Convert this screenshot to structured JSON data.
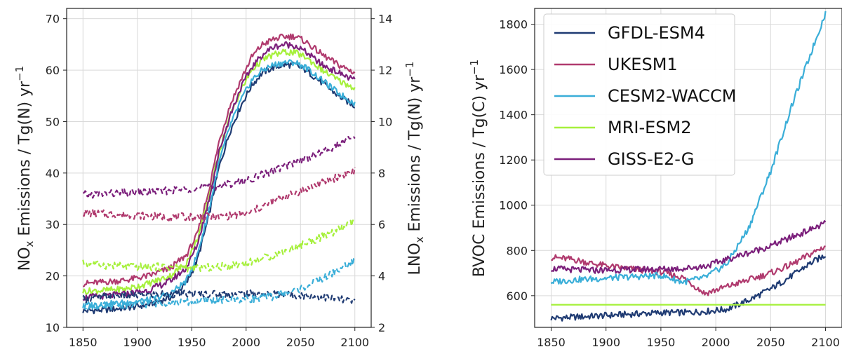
{
  "chart_data": [
    {
      "type": "line",
      "title": "",
      "xlabel": "",
      "ylabel_main": "NO",
      "ylabel_sub": "x",
      "ylabel_rest": " Emissions / Tg(N) yr",
      "ylabel_sup": "−1",
      "y2label_main": "LNO",
      "y2label_sub": "x",
      "y2label_rest": " Emissions / Tg(N) yr",
      "y2label_sup": "−1",
      "xlim": [
        1835,
        2115
      ],
      "ylim": [
        10,
        72
      ],
      "y2lim": [
        2,
        14.4
      ],
      "xticks": [
        1850,
        1900,
        1950,
        2000,
        2050,
        2100
      ],
      "yticks": [
        10,
        20,
        30,
        40,
        50,
        60,
        70
      ],
      "y2ticks": [
        2,
        4,
        6,
        8,
        10,
        12,
        14
      ],
      "grid": true,
      "series": [
        {
          "name": "GFDL-ESM4",
          "style": "solid",
          "color": "#1f3b73",
          "x": [
            1850,
            1870,
            1890,
            1910,
            1930,
            1945,
            1955,
            1965,
            1975,
            1985,
            1995,
            2005,
            2015,
            2025,
            2035,
            2045,
            2055,
            2070,
            2085,
            2100
          ],
          "y": [
            13.2,
            13.4,
            13.8,
            14.4,
            15.8,
            18.5,
            23,
            31,
            41,
            48,
            53,
            57,
            59.5,
            60.5,
            61,
            61,
            60,
            57.5,
            55,
            53
          ]
        },
        {
          "name": "UKESM1",
          "style": "solid",
          "color": "#b03a6e",
          "x": [
            1850,
            1870,
            1890,
            1910,
            1930,
            1945,
            1955,
            1965,
            1975,
            1985,
            1995,
            2005,
            2015,
            2025,
            2035,
            2045,
            2055,
            2070,
            2085,
            2100
          ],
          "y": [
            18.5,
            18.8,
            19.2,
            20,
            21.5,
            24,
            28,
            36,
            46,
            53,
            58,
            62.5,
            65,
            66,
            66.5,
            66.6,
            65.5,
            63,
            61,
            59.5
          ]
        },
        {
          "name": "CESM2-WACCM",
          "style": "solid",
          "color": "#3aaed8",
          "x": [
            1850,
            1870,
            1890,
            1910,
            1930,
            1945,
            1955,
            1965,
            1975,
            1985,
            1995,
            2005,
            2015,
            2025,
            2035,
            2045,
            2055,
            2070,
            2085,
            2100
          ],
          "y": [
            14.3,
            14.5,
            14.8,
            15.3,
            16.5,
            19,
            24,
            32,
            42,
            49,
            54,
            58,
            60,
            61,
            61.5,
            61.5,
            60.5,
            58,
            55.5,
            53.5
          ]
        },
        {
          "name": "MRI-ESM2",
          "style": "solid",
          "color": "#a6f03c",
          "x": [
            1850,
            1870,
            1890,
            1910,
            1930,
            1945,
            1955,
            1965,
            1975,
            1985,
            1995,
            2005,
            2015,
            2025,
            2035,
            2045,
            2055,
            2070,
            2085,
            2100
          ],
          "y": [
            17,
            17.2,
            17.5,
            18.5,
            20,
            22.5,
            27,
            34.5,
            44,
            51,
            56,
            60,
            62,
            63,
            63.5,
            63.4,
            62.5,
            60,
            58,
            56.5
          ]
        },
        {
          "name": "GISS-E2-G",
          "style": "solid",
          "color": "#7b1f7b",
          "x": [
            1850,
            1870,
            1890,
            1910,
            1930,
            1945,
            1955,
            1965,
            1975,
            1985,
            1995,
            2005,
            2015,
            2025,
            2035,
            2045,
            2055,
            2070,
            2085,
            2100
          ],
          "y": [
            15.8,
            16.1,
            16.5,
            17.2,
            19,
            21.5,
            26,
            34,
            44,
            51,
            56.5,
            60.5,
            63,
            64.5,
            65,
            64.8,
            63.5,
            61,
            59.5,
            58
          ]
        },
        {
          "name": "GFDL-ESM4",
          "style": "dashed",
          "axis": "right",
          "color": "#1f3b73",
          "x": [
            1850,
            1875,
            1900,
            1925,
            1950,
            1975,
            2000,
            2025,
            2050,
            2075,
            2100
          ],
          "y": [
            3.1,
            3.2,
            3.25,
            3.3,
            3.3,
            3.3,
            3.3,
            3.3,
            3.25,
            3.15,
            3.0
          ]
        },
        {
          "name": "UKESM1",
          "style": "dashed",
          "axis": "right",
          "color": "#b03a6e",
          "x": [
            1850,
            1875,
            1900,
            1925,
            1950,
            1975,
            2000,
            2025,
            2050,
            2075,
            2100
          ],
          "y": [
            6.45,
            6.4,
            6.35,
            6.3,
            6.3,
            6.3,
            6.4,
            6.9,
            7.3,
            7.7,
            8.1
          ]
        },
        {
          "name": "CESM2-WACCM",
          "style": "dashed",
          "axis": "right",
          "color": "#3aaed8",
          "x": [
            1850,
            1875,
            1900,
            1925,
            1950,
            1975,
            2000,
            2025,
            2050,
            2075,
            2100
          ],
          "y": [
            2.8,
            2.85,
            2.9,
            2.95,
            3.0,
            3.05,
            3.1,
            3.2,
            3.5,
            4.0,
            4.6
          ]
        },
        {
          "name": "MRI-ESM2",
          "style": "dashed",
          "axis": "right",
          "color": "#a6f03c",
          "x": [
            1850,
            1875,
            1900,
            1925,
            1950,
            1975,
            2000,
            2025,
            2050,
            2075,
            2100
          ],
          "y": [
            4.5,
            4.4,
            4.35,
            4.35,
            4.3,
            4.35,
            4.5,
            4.8,
            5.2,
            5.6,
            6.1
          ]
        },
        {
          "name": "GISS-E2-G",
          "style": "dashed",
          "axis": "right",
          "color": "#7b1f7b",
          "x": [
            1850,
            1875,
            1900,
            1925,
            1950,
            1975,
            2000,
            2025,
            2050,
            2075,
            2100
          ],
          "y": [
            7.15,
            7.2,
            7.25,
            7.3,
            7.4,
            7.5,
            7.7,
            8.1,
            8.5,
            8.9,
            9.4
          ]
        }
      ]
    },
    {
      "type": "line",
      "title": "",
      "xlabel": "",
      "ylabel": "BVOC Emissions / Tg(C) yr",
      "ylabel_sup": "−1",
      "xlim": [
        1835,
        2115
      ],
      "ylim": [
        460,
        1870
      ],
      "xticks": [
        1850,
        1900,
        1950,
        2000,
        2050,
        2100
      ],
      "yticks": [
        600,
        800,
        1000,
        1200,
        1400,
        1600,
        1800
      ],
      "grid": true,
      "legend": "top-left",
      "series": [
        {
          "name": "GFDL-ESM4",
          "color": "#1f3b73",
          "x": [
            1850,
            1870,
            1890,
            1910,
            1930,
            1950,
            1970,
            1990,
            2010,
            2030,
            2050,
            2070,
            2085,
            2100
          ],
          "y": [
            500,
            505,
            510,
            515,
            520,
            525,
            525,
            530,
            540,
            580,
            630,
            690,
            740,
            780
          ]
        },
        {
          "name": "UKESM1",
          "color": "#b03a6e",
          "x": [
            1850,
            1870,
            1890,
            1910,
            1930,
            1950,
            1970,
            1990,
            2010,
            2030,
            2050,
            2070,
            2085,
            2100
          ],
          "y": [
            770,
            760,
            740,
            725,
            715,
            705,
            680,
            610,
            640,
            670,
            700,
            740,
            780,
            820
          ]
        },
        {
          "name": "CESM2-WACCM",
          "color": "#3aaed8",
          "x": [
            1850,
            1870,
            1890,
            1910,
            1930,
            1950,
            1970,
            1990,
            2010,
            2030,
            2050,
            2070,
            2085,
            2100
          ],
          "y": [
            660,
            670,
            675,
            680,
            685,
            690,
            660,
            680,
            740,
            900,
            1150,
            1450,
            1650,
            1850
          ]
        },
        {
          "name": "MRI-ESM2",
          "color": "#a6f03c",
          "x": [
            1850,
            2100
          ],
          "y": [
            560,
            560
          ]
        },
        {
          "name": "GISS-E2-G",
          "color": "#7b1f7b",
          "x": [
            1850,
            1870,
            1890,
            1910,
            1930,
            1950,
            1970,
            1990,
            2010,
            2030,
            2050,
            2070,
            2085,
            2100
          ],
          "y": [
            720,
            715,
            712,
            714,
            716,
            718,
            720,
            730,
            760,
            790,
            820,
            860,
            890,
            920
          ]
        }
      ]
    }
  ]
}
